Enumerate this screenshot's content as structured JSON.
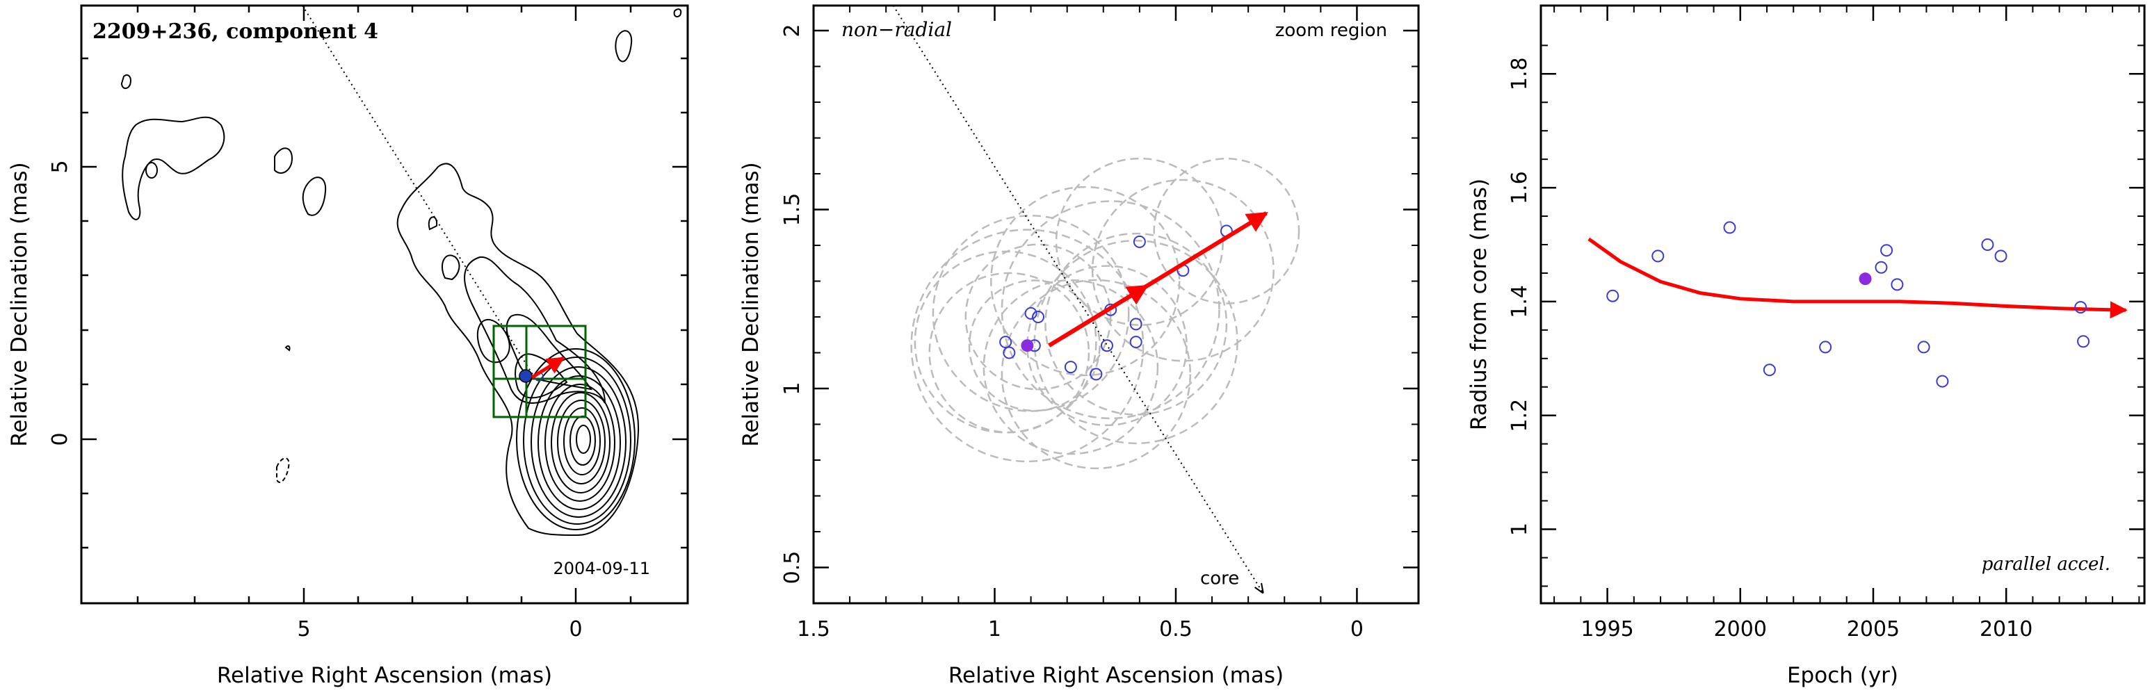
{
  "chart_data": [
    {
      "type": "contour-map",
      "title": "2209+236, component 4",
      "date_label": "2004-09-11",
      "xlabel": "Relative Right Ascension (mas)",
      "ylabel": "Relative Declination (mas)",
      "xlim": [
        9.3,
        -2.0
      ],
      "ylim": [
        -3.0,
        8.0
      ],
      "xticks": [
        5,
        0
      ],
      "yticks": [
        0,
        5
      ],
      "core": {
        "x": 0,
        "y": 0
      },
      "ridge_line": {
        "from": [
          5.0,
          8.0
        ],
        "to": [
          0.0,
          0.0
        ]
      },
      "component_position": {
        "x": 0.91,
        "y": 1.12
      },
      "motion_vector": {
        "from": [
          0.85,
          1.12
        ],
        "to": [
          0.25,
          1.49
        ]
      },
      "zoom_box": {
        "x": [
          1.6,
          0.0
        ],
        "y": [
          0.4,
          2.1
        ]
      },
      "colors": {
        "contour": "#000000",
        "vector": "#ff0000",
        "zoom_box": "#006400",
        "component": "#1f3fb4"
      }
    },
    {
      "type": "scatter",
      "label_left": "non−radial",
      "label_right": "zoom region",
      "core_label": "core",
      "xlabel": "Relative Right Ascension (mas)",
      "ylabel": "Relative Declination (mas)",
      "xlim": [
        1.5,
        -0.17
      ],
      "ylim": [
        0.4,
        2.07
      ],
      "xticks": [
        "1.5",
        "1",
        "0.5",
        "0"
      ],
      "yticks": [
        "0.5",
        "1",
        "1.5",
        "2"
      ],
      "points": [
        {
          "x": 0.97,
          "y": 1.13
        },
        {
          "x": 0.96,
          "y": 1.1
        },
        {
          "x": 0.9,
          "y": 1.21
        },
        {
          "x": 0.88,
          "y": 1.2
        },
        {
          "x": 0.89,
          "y": 1.12
        },
        {
          "x": 0.79,
          "y": 1.06
        },
        {
          "x": 0.72,
          "y": 1.04
        },
        {
          "x": 0.69,
          "y": 1.12
        },
        {
          "x": 0.68,
          "y": 1.22
        },
        {
          "x": 0.61,
          "y": 1.18
        },
        {
          "x": 0.61,
          "y": 1.13
        },
        {
          "x": 0.6,
          "y": 1.41
        },
        {
          "x": 0.48,
          "y": 1.33
        },
        {
          "x": 0.36,
          "y": 1.44
        }
      ],
      "highlight_point": {
        "x": 0.91,
        "y": 1.12
      },
      "uncertainty_circles": [
        {
          "x": 0.97,
          "y": 1.13,
          "r": 0.25
        },
        {
          "x": 0.96,
          "y": 1.1,
          "r": 0.22
        },
        {
          "x": 0.9,
          "y": 1.21,
          "r": 0.27
        },
        {
          "x": 0.88,
          "y": 1.2,
          "r": 0.2
        },
        {
          "x": 0.89,
          "y": 1.12,
          "r": 0.18
        },
        {
          "x": 0.79,
          "y": 1.06,
          "r": 0.24
        },
        {
          "x": 0.72,
          "y": 1.04,
          "r": 0.26
        },
        {
          "x": 0.69,
          "y": 1.12,
          "r": 0.22
        },
        {
          "x": 0.68,
          "y": 1.22,
          "r": 0.3
        },
        {
          "x": 0.61,
          "y": 1.18,
          "r": 0.25
        },
        {
          "x": 0.61,
          "y": 1.13,
          "r": 0.28
        },
        {
          "x": 0.6,
          "y": 1.41,
          "r": 0.23
        },
        {
          "x": 0.48,
          "y": 1.33,
          "r": 0.25
        },
        {
          "x": 0.36,
          "y": 1.44,
          "r": 0.2
        },
        {
          "x": 0.91,
          "y": 1.12,
          "r": 0.32
        },
        {
          "x": 0.75,
          "y": 1.3,
          "r": 0.26
        }
      ],
      "motion_vector": {
        "from": [
          0.85,
          1.12
        ],
        "to": [
          0.25,
          1.49
        ]
      },
      "ridge_line": {
        "from": [
          1.28,
          2.07
        ],
        "to": [
          0.26,
          0.43
        ]
      },
      "colors": {
        "points": "#3a3ad6",
        "highlight": "#8a2be2",
        "vector": "#ff0000",
        "circles": "#bbbbbb"
      }
    },
    {
      "type": "scatter",
      "annotation": "parallel accel.",
      "xlabel": "Epoch (yr)",
      "ylabel": "Radius from core (mas)",
      "xlim": [
        1992.5,
        2015.2
      ],
      "ylim": [
        0.87,
        1.92
      ],
      "xticks": [
        1995,
        2000,
        2005,
        2010
      ],
      "yticks": [
        "1",
        "1.2",
        "1.4",
        "1.6",
        "1.8"
      ],
      "points": [
        {
          "x": 1995.2,
          "y": 1.41
        },
        {
          "x": 1996.9,
          "y": 1.48
        },
        {
          "x": 1999.6,
          "y": 1.53
        },
        {
          "x": 2001.1,
          "y": 1.28
        },
        {
          "x": 2003.2,
          "y": 1.32
        },
        {
          "x": 2005.3,
          "y": 1.46
        },
        {
          "x": 2005.5,
          "y": 1.49
        },
        {
          "x": 2005.9,
          "y": 1.43
        },
        {
          "x": 2006.9,
          "y": 1.32
        },
        {
          "x": 2007.6,
          "y": 1.26
        },
        {
          "x": 2009.3,
          "y": 1.5
        },
        {
          "x": 2009.8,
          "y": 1.48
        },
        {
          "x": 2012.8,
          "y": 1.39
        },
        {
          "x": 2012.9,
          "y": 1.33
        }
      ],
      "highlight_point": {
        "x": 2004.7,
        "y": 1.44
      },
      "fit_curve": {
        "x": [
          1994.3,
          1995.5,
          1997.0,
          1998.5,
          2000.0,
          2002.0,
          2004.0,
          2006.0,
          2008.0,
          2010.0,
          2012.0,
          2013.5,
          2014.5
        ],
        "y": [
          1.51,
          1.47,
          1.435,
          1.415,
          1.405,
          1.4,
          1.4,
          1.4,
          1.397,
          1.392,
          1.388,
          1.386,
          1.385
        ]
      },
      "colors": {
        "points": "#3a3ad6",
        "highlight": "#8a2be2",
        "fit": "#ff0000"
      }
    }
  ]
}
